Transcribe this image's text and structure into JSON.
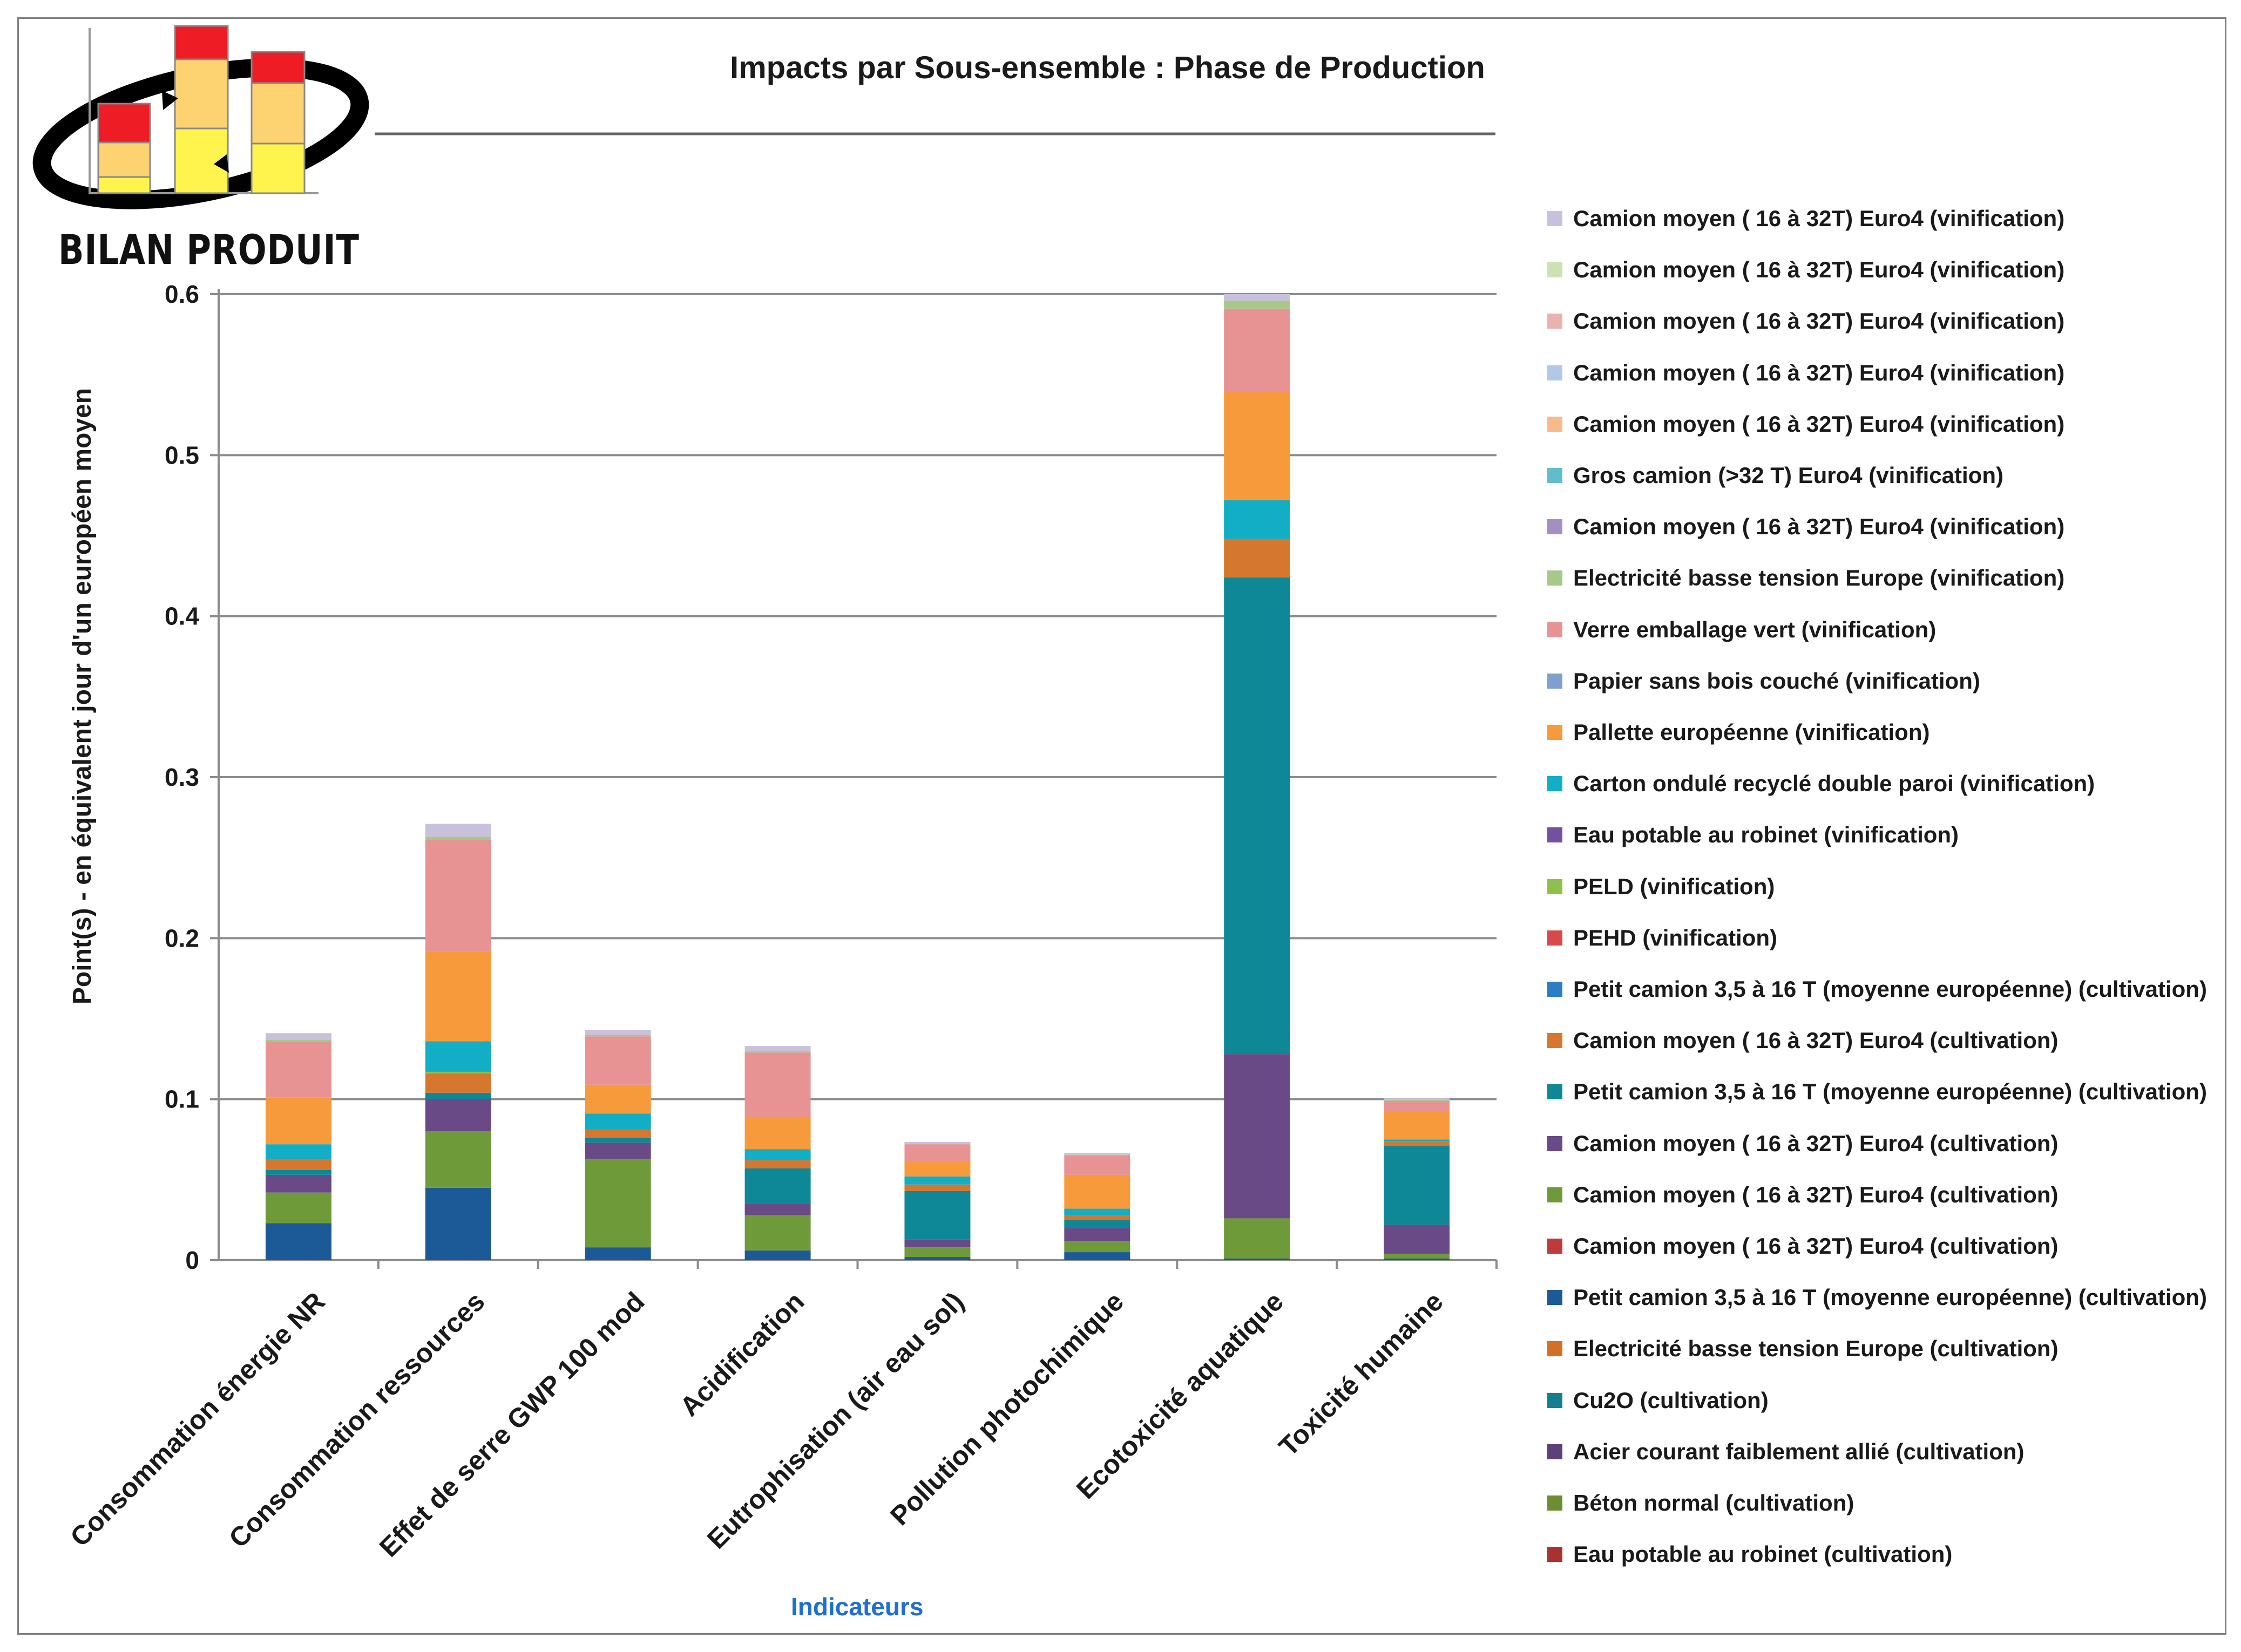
{
  "logo": {
    "title": "BILAN PRODUIT"
  },
  "chart_data": {
    "type": "bar",
    "stacked": true,
    "title": "Impacts par Sous-ensemble : Phase de Production",
    "xlabel": "Indicateurs",
    "ylabel": "Point(s)  - en équivalent jour d'un européen moyen",
    "ylim": [
      0,
      0.6
    ],
    "yticks": [
      0,
      0.1,
      0.2,
      0.3,
      0.4,
      0.5,
      0.6
    ],
    "ytick_labels": [
      "0",
      "0.1",
      "0.2",
      "0.3",
      "0.4",
      "0.5",
      "0.6"
    ],
    "grid": true,
    "legend_position": "right",
    "categories": [
      "Consommation énergie NR",
      "Consommation ressources",
      "Effet de serre GWP 100 mod",
      "Acidification",
      "Eutrophisation (air eau sol)",
      "Pollution photochimique",
      "Ecotoxicité aquatique",
      "Toxicité humaine"
    ],
    "series": [
      {
        "name": "Eau potable au robinet (cultivation)",
        "color": "#a83232",
        "values": [
          0,
          0,
          0,
          0,
          0,
          0,
          0,
          0
        ]
      },
      {
        "name": "Béton normal (cultivation)",
        "color": "#6b8e35",
        "values": [
          0,
          0,
          0,
          0,
          0,
          0,
          0,
          0
        ]
      },
      {
        "name": "Acier courant faiblement allié (cultivation)",
        "color": "#5e3f7a",
        "values": [
          0,
          0,
          0,
          0,
          0,
          0,
          0,
          0
        ]
      },
      {
        "name": "Cu2O (cultivation)",
        "color": "#167f8f",
        "values": [
          0,
          0,
          0,
          0,
          0,
          0,
          0,
          0
        ]
      },
      {
        "name": "Electricité basse tension Europe (cultivation)",
        "color": "#d2702a",
        "values": [
          0,
          0,
          0,
          0,
          0,
          0,
          0,
          0
        ]
      },
      {
        "name": "Petit camion 3,5 à 16 T (moyenne européenne) (cultivation)",
        "color": "#1c5a97",
        "values": [
          0.023,
          0.045,
          0.008,
          0.006,
          0.002,
          0.005,
          0.001,
          0.001
        ]
      },
      {
        "name": "Camion moyen ( 16 à 32T) Euro4  (cultivation)",
        "color": "#c0393b",
        "values": [
          0,
          0,
          0,
          0,
          0,
          0,
          0,
          0
        ]
      },
      {
        "name": "Camion moyen ( 16 à 32T) Euro4  (cultivation)",
        "color": "#6e9a3a",
        "values": [
          0.019,
          0.035,
          0.055,
          0.022,
          0.006,
          0.007,
          0.025,
          0.003
        ]
      },
      {
        "name": "Camion moyen ( 16 à 32T) Euro4  (cultivation)",
        "color": "#6a4a86",
        "values": [
          0.011,
          0.02,
          0.01,
          0.007,
          0.005,
          0.008,
          0.102,
          0.018
        ]
      },
      {
        "name": "Petit camion 3,5 à 16 T (moyenne européenne) (cultivation)",
        "color": "#0e8797",
        "values": [
          0.003,
          0.004,
          0.003,
          0.022,
          0.03,
          0.005,
          0.296,
          0.049
        ]
      },
      {
        "name": "Camion moyen ( 16 à 32T) Euro4  (cultivation)",
        "color": "#d5772e",
        "values": [
          0.007,
          0.012,
          0.005,
          0.005,
          0.004,
          0.003,
          0.024,
          0.003
        ]
      },
      {
        "name": "Petit camion 3,5 à 16 T (moyenne européenne) (cultivation)",
        "color": "#2b7ec4",
        "values": [
          0,
          0,
          0,
          0,
          0,
          0,
          0,
          0
        ]
      },
      {
        "name": "PEHD (vinification)",
        "color": "#d9484a",
        "values": [
          0,
          0,
          0,
          0,
          0,
          0,
          0,
          0
        ]
      },
      {
        "name": "PELD (vinification)",
        "color": "#8fbf4f",
        "values": [
          0,
          0.001,
          0,
          0,
          0,
          0,
          0,
          0
        ]
      },
      {
        "name": "Eau potable au robinet (vinification)",
        "color": "#7650a0",
        "values": [
          0,
          0,
          0,
          0,
          0,
          0,
          0,
          0
        ]
      },
      {
        "name": "Carton ondulé recyclé double paroi (vinification)",
        "color": "#12aec5",
        "values": [
          0.009,
          0.019,
          0.01,
          0.007,
          0.005,
          0.004,
          0.024,
          0.001
        ]
      },
      {
        "name": "Pallette européenne (vinification)",
        "color": "#f79a3b",
        "values": [
          0.029,
          0.056,
          0.018,
          0.02,
          0.009,
          0.021,
          0.067,
          0.017
        ]
      },
      {
        "name": "Papier sans bois couché (vinification)",
        "color": "#7f9fcf",
        "values": [
          0,
          0,
          0,
          0,
          0,
          0,
          0,
          0
        ]
      },
      {
        "name": "Verre emballage vert (vinification)",
        "color": "#e89393",
        "values": [
          0.035,
          0.069,
          0.03,
          0.04,
          0.011,
          0.012,
          0.052,
          0.007
        ]
      },
      {
        "name": "Electricité basse tension Europe (vinification)",
        "color": "#a6c98a",
        "values": [
          0.001,
          0.002,
          0.001,
          0.001,
          0.0005,
          0.0005,
          0.005,
          0.0005
        ]
      },
      {
        "name": "Camion moyen ( 16 à 32T) Euro4  (vinification)",
        "color": "#a58fc2",
        "values": [
          0,
          0,
          0,
          0,
          0,
          0,
          0,
          0
        ]
      },
      {
        "name": "Gros camion (>32 T) Euro4  (vinification)",
        "color": "#63bccc",
        "values": [
          0,
          0,
          0,
          0,
          0,
          0,
          0,
          0
        ]
      },
      {
        "name": "Camion moyen ( 16 à 32T) Euro4  (vinification)",
        "color": "#f9b98c",
        "values": [
          0,
          0,
          0,
          0,
          0,
          0,
          0,
          0
        ]
      },
      {
        "name": "Camion moyen ( 16 à 32T) Euro4  (vinification)",
        "color": "#b3c7e6",
        "values": [
          0,
          0,
          0,
          0,
          0,
          0,
          0,
          0
        ]
      },
      {
        "name": "Camion moyen ( 16 à 32T) Euro4  (vinification)",
        "color": "#e8b2ae",
        "values": [
          0,
          0,
          0,
          0,
          0,
          0,
          0,
          0
        ]
      },
      {
        "name": "Camion moyen ( 16 à 32T) Euro4  (vinification)",
        "color": "#cde2b4",
        "values": [
          0,
          0,
          0,
          0,
          0,
          0,
          0,
          0
        ]
      },
      {
        "name": "Camion moyen ( 16 à 32T) Euro4  (vinification)",
        "color": "#c9c1dc",
        "values": [
          0.004,
          0.008,
          0.003,
          0.003,
          0.001,
          0.001,
          0.004,
          0.001
        ]
      }
    ]
  }
}
